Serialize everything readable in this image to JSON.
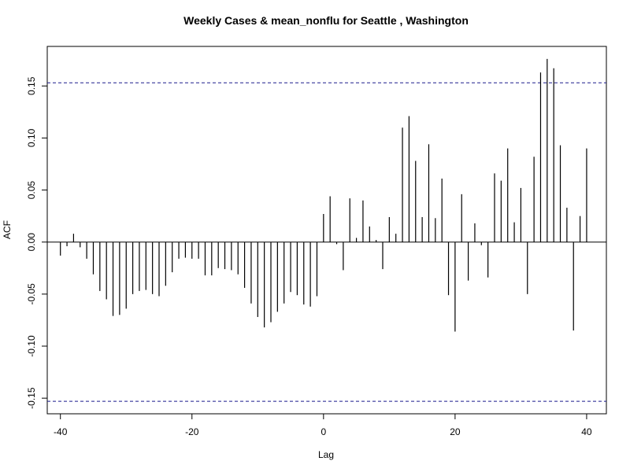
{
  "chart_data": {
    "type": "bar",
    "title": "Weekly Cases & mean_nonflu for Seattle , Washington",
    "xlabel": "Lag",
    "ylabel": "ACF",
    "xlim": [
      -42,
      43
    ],
    "ylim": [
      -0.165,
      0.188
    ],
    "x_ticks": [
      -40,
      -20,
      0,
      20,
      40
    ],
    "y_ticks": [
      -0.15,
      -0.1,
      -0.05,
      0.0,
      0.05,
      0.1,
      0.15
    ],
    "y_tick_labels": [
      "-0.15",
      "-0.10",
      "-0.05",
      "0.00",
      "0.05",
      "0.10",
      "0.15"
    ],
    "confidence_bound": 0.153,
    "lags": [
      -40,
      -39,
      -38,
      -37,
      -36,
      -35,
      -34,
      -33,
      -32,
      -31,
      -30,
      -29,
      -28,
      -27,
      -26,
      -25,
      -24,
      -23,
      -22,
      -21,
      -20,
      -19,
      -18,
      -17,
      -16,
      -15,
      -14,
      -13,
      -12,
      -11,
      -10,
      -9,
      -8,
      -7,
      -6,
      -5,
      -4,
      -3,
      -2,
      -1,
      0,
      1,
      2,
      3,
      4,
      5,
      6,
      7,
      8,
      9,
      10,
      11,
      12,
      13,
      14,
      15,
      16,
      17,
      18,
      19,
      20,
      21,
      22,
      23,
      24,
      25,
      26,
      27,
      28,
      29,
      30,
      31,
      32,
      33,
      34,
      35,
      36,
      37,
      38,
      39,
      40
    ],
    "values": [
      -0.013,
      -0.004,
      0.008,
      -0.005,
      -0.016,
      -0.031,
      -0.047,
      -0.055,
      -0.071,
      -0.07,
      -0.064,
      -0.05,
      -0.047,
      -0.046,
      -0.05,
      -0.052,
      -0.042,
      -0.029,
      -0.016,
      -0.015,
      -0.016,
      -0.016,
      -0.032,
      -0.032,
      -0.025,
      -0.026,
      -0.027,
      -0.031,
      -0.044,
      -0.059,
      -0.072,
      -0.082,
      -0.077,
      -0.067,
      -0.059,
      -0.048,
      -0.051,
      -0.06,
      -0.062,
      -0.052,
      0.027,
      0.044,
      -0.002,
      -0.027,
      0.042,
      0.004,
      0.04,
      0.015,
      0.002,
      -0.026,
      0.024,
      0.008,
      0.11,
      0.121,
      0.078,
      0.024,
      0.094,
      0.023,
      0.061,
      -0.051,
      -0.086,
      0.046,
      -0.037,
      0.018,
      -0.003,
      -0.034,
      0.066,
      0.059,
      0.09,
      0.019,
      0.052,
      -0.05,
      0.082,
      0.163,
      0.176,
      0.167,
      0.093,
      0.033,
      -0.085,
      0.025,
      0.09
    ]
  }
}
